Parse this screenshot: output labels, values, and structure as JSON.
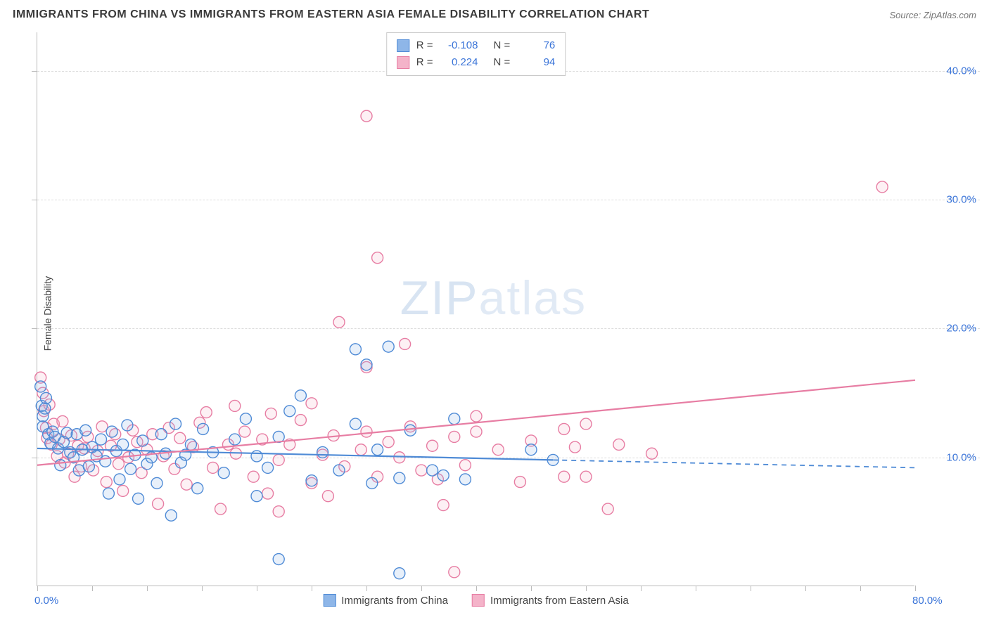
{
  "title": "IMMIGRANTS FROM CHINA VS IMMIGRANTS FROM EASTERN ASIA FEMALE DISABILITY CORRELATION CHART",
  "source_label": "Source: ",
  "source_site": "ZipAtlas.com",
  "watermark_a": "ZIP",
  "watermark_b": "atlas",
  "ylabel": "Female Disability",
  "chart": {
    "type": "scatter",
    "xlim": [
      0,
      80
    ],
    "ylim": [
      0,
      43
    ],
    "x_ticks_minor": [
      0,
      5,
      10,
      15,
      20,
      25,
      30,
      35,
      40,
      45,
      50,
      55,
      60,
      65,
      70,
      75,
      80
    ],
    "y_ticks_minor": [
      10,
      20,
      30,
      40
    ],
    "x_tick_labels": [
      {
        "v": 0,
        "t": "0.0%"
      },
      {
        "v": 80,
        "t": "80.0%"
      }
    ],
    "y_tick_labels": [
      {
        "v": 10,
        "t": "10.0%"
      },
      {
        "v": 20,
        "t": "20.0%"
      },
      {
        "v": 30,
        "t": "30.0%"
      },
      {
        "v": 40,
        "t": "40.0%"
      }
    ],
    "grid_color": "#dcdcdc",
    "background_color": "#ffffff",
    "marker_radius": 8,
    "marker_stroke_width": 1.4,
    "marker_fill_opacity": 0.2,
    "series": [
      {
        "key": "china",
        "label": "Immigrants from China",
        "color_stroke": "#4f8bd6",
        "color_fill": "#8eb6e8",
        "r": -0.108,
        "n": 76,
        "trend": {
          "x1": 0,
          "y1": 10.7,
          "x2": 47,
          "y2": 9.8,
          "dash_x2": 80,
          "dash_y2": 9.2,
          "width": 2.2
        },
        "points": [
          [
            0.3,
            15.5
          ],
          [
            0.4,
            14.0
          ],
          [
            0.5,
            13.2
          ],
          [
            0.5,
            12.4
          ],
          [
            0.7,
            13.8
          ],
          [
            0.8,
            14.6
          ],
          [
            1.0,
            11.8
          ],
          [
            1.2,
            11.1
          ],
          [
            1.4,
            12.0
          ],
          [
            1.6,
            11.6
          ],
          [
            1.9,
            10.7
          ],
          [
            2.1,
            9.4
          ],
          [
            2.4,
            11.2
          ],
          [
            2.7,
            11.9
          ],
          [
            3.0,
            10.4
          ],
          [
            3.3,
            10.0
          ],
          [
            3.6,
            11.8
          ],
          [
            3.8,
            9.0
          ],
          [
            4.1,
            10.6
          ],
          [
            4.4,
            12.1
          ],
          [
            4.7,
            9.3
          ],
          [
            5.0,
            10.8
          ],
          [
            5.4,
            10.1
          ],
          [
            5.8,
            11.4
          ],
          [
            6.2,
            9.7
          ],
          [
            6.5,
            7.2
          ],
          [
            6.8,
            12.0
          ],
          [
            7.2,
            10.5
          ],
          [
            7.5,
            8.3
          ],
          [
            7.8,
            11.0
          ],
          [
            8.2,
            12.5
          ],
          [
            8.5,
            9.1
          ],
          [
            8.9,
            10.2
          ],
          [
            9.2,
            6.8
          ],
          [
            9.6,
            11.3
          ],
          [
            10.0,
            9.5
          ],
          [
            10.4,
            10.0
          ],
          [
            10.9,
            8.0
          ],
          [
            11.3,
            11.8
          ],
          [
            11.7,
            10.3
          ],
          [
            12.2,
            5.5
          ],
          [
            12.6,
            12.6
          ],
          [
            13.1,
            9.6
          ],
          [
            13.5,
            10.2
          ],
          [
            14.0,
            11.0
          ],
          [
            14.6,
            7.6
          ],
          [
            15.1,
            12.2
          ],
          [
            16.0,
            10.4
          ],
          [
            17.0,
            8.8
          ],
          [
            18.0,
            11.4
          ],
          [
            19.0,
            13.0
          ],
          [
            20.0,
            7.0
          ],
          [
            20.0,
            10.1
          ],
          [
            21.0,
            9.2
          ],
          [
            22.0,
            11.6
          ],
          [
            22.0,
            2.1
          ],
          [
            23.0,
            13.6
          ],
          [
            24.0,
            14.8
          ],
          [
            25.0,
            8.2
          ],
          [
            26.0,
            10.4
          ],
          [
            27.5,
            9.0
          ],
          [
            29.0,
            12.6
          ],
          [
            29.0,
            18.4
          ],
          [
            30.0,
            17.2
          ],
          [
            30.5,
            8.0
          ],
          [
            31.0,
            10.6
          ],
          [
            32.0,
            18.6
          ],
          [
            33.0,
            1.0
          ],
          [
            33.0,
            8.4
          ],
          [
            34.0,
            12.1
          ],
          [
            36.0,
            9.0
          ],
          [
            37.0,
            8.6
          ],
          [
            38.0,
            13.0
          ],
          [
            39.0,
            8.3
          ],
          [
            45.0,
            10.6
          ],
          [
            47.0,
            9.8
          ]
        ]
      },
      {
        "key": "easia",
        "label": "Immigrants from Eastern Asia",
        "color_stroke": "#e77da3",
        "color_fill": "#f4b3c9",
        "r": 0.224,
        "n": 94,
        "trend": {
          "x1": 0,
          "y1": 9.4,
          "x2": 80,
          "y2": 16.0,
          "width": 2.2
        },
        "points": [
          [
            0.3,
            16.2
          ],
          [
            0.5,
            15.0
          ],
          [
            0.6,
            13.6
          ],
          [
            0.8,
            12.3
          ],
          [
            0.9,
            11.5
          ],
          [
            1.1,
            14.1
          ],
          [
            1.3,
            11.0
          ],
          [
            1.5,
            12.6
          ],
          [
            1.8,
            10.1
          ],
          [
            2.0,
            11.4
          ],
          [
            2.3,
            12.8
          ],
          [
            2.5,
            9.6
          ],
          [
            2.8,
            10.3
          ],
          [
            3.1,
            11.7
          ],
          [
            3.4,
            8.5
          ],
          [
            3.7,
            10.9
          ],
          [
            4.0,
            9.3
          ],
          [
            4.3,
            10.7
          ],
          [
            4.6,
            11.6
          ],
          [
            5.1,
            9.0
          ],
          [
            5.5,
            10.5
          ],
          [
            5.9,
            12.4
          ],
          [
            6.3,
            8.1
          ],
          [
            6.7,
            10.9
          ],
          [
            7.1,
            11.8
          ],
          [
            7.4,
            9.5
          ],
          [
            7.8,
            7.4
          ],
          [
            8.3,
            10.0
          ],
          [
            8.7,
            12.1
          ],
          [
            9.1,
            11.2
          ],
          [
            9.5,
            8.8
          ],
          [
            10.0,
            10.6
          ],
          [
            10.5,
            11.8
          ],
          [
            11.0,
            6.4
          ],
          [
            11.5,
            10.1
          ],
          [
            12.0,
            12.3
          ],
          [
            12.5,
            9.1
          ],
          [
            13.0,
            11.5
          ],
          [
            13.6,
            7.9
          ],
          [
            14.2,
            10.8
          ],
          [
            14.8,
            12.7
          ],
          [
            15.4,
            13.5
          ],
          [
            16.0,
            9.2
          ],
          [
            16.7,
            6.0
          ],
          [
            17.4,
            11.0
          ],
          [
            18.1,
            10.3
          ],
          [
            18.0,
            14.0
          ],
          [
            18.9,
            12.0
          ],
          [
            19.7,
            8.5
          ],
          [
            20.5,
            11.4
          ],
          [
            21.0,
            7.2
          ],
          [
            21.3,
            13.4
          ],
          [
            22.0,
            9.8
          ],
          [
            22.0,
            5.8
          ],
          [
            23.0,
            11.0
          ],
          [
            24.0,
            12.9
          ],
          [
            25.0,
            8.0
          ],
          [
            25.0,
            14.2
          ],
          [
            26.0,
            10.2
          ],
          [
            26.5,
            7.0
          ],
          [
            27.0,
            11.7
          ],
          [
            27.5,
            20.5
          ],
          [
            28.0,
            9.3
          ],
          [
            29.5,
            10.6
          ],
          [
            30.0,
            12.0
          ],
          [
            30.0,
            17.0
          ],
          [
            30.0,
            36.5
          ],
          [
            31.0,
            8.5
          ],
          [
            31.0,
            25.5
          ],
          [
            32.0,
            11.2
          ],
          [
            33.0,
            10.0
          ],
          [
            33.5,
            18.8
          ],
          [
            34.0,
            12.4
          ],
          [
            35.0,
            9.0
          ],
          [
            36.0,
            10.9
          ],
          [
            36.5,
            8.3
          ],
          [
            37.0,
            6.3
          ],
          [
            38.0,
            11.6
          ],
          [
            38.0,
            1.1
          ],
          [
            39.0,
            9.4
          ],
          [
            40.0,
            12.0
          ],
          [
            40.0,
            13.2
          ],
          [
            42.0,
            10.6
          ],
          [
            44.0,
            8.1
          ],
          [
            45.0,
            11.3
          ],
          [
            48.0,
            8.5
          ],
          [
            49.0,
            10.8
          ],
          [
            50.0,
            12.6
          ],
          [
            52.0,
            6.0
          ],
          [
            53.0,
            11.0
          ],
          [
            56.0,
            10.3
          ],
          [
            48.0,
            12.2
          ],
          [
            50.0,
            8.5
          ],
          [
            77.0,
            31.0
          ]
        ]
      }
    ]
  },
  "legend_top": {
    "r_label": "R =",
    "n_label": "N ="
  }
}
